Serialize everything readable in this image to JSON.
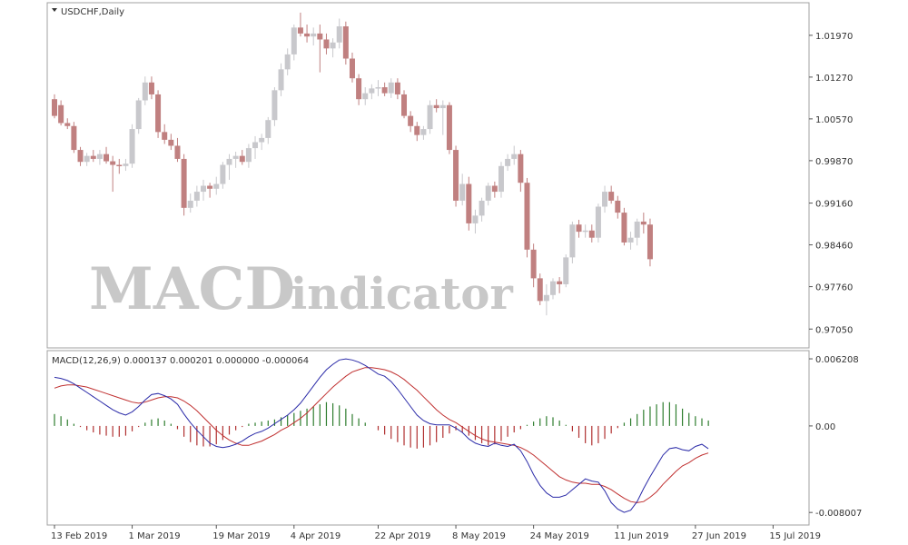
{
  "window": {
    "symbol_label": "USDCHF,Daily"
  },
  "watermark": {
    "word1": "MACD",
    "word2": "indicator"
  },
  "colors": {
    "bull": "#c8c8cc",
    "bear": "#c08080",
    "doji": "#5f5f5f",
    "macd_line": "#2a2aa8",
    "signal_line": "#c03030",
    "hist_pos": "#2e7d2e",
    "hist_neg": "#b03030",
    "grid_border": "#a0a0a0"
  },
  "chart_data": [
    {
      "type": "candlestick",
      "title": "USDCHF,Daily",
      "y_ticks": [
        "1.01970",
        "1.01270",
        "1.00570",
        "0.99870",
        "0.99160",
        "0.98460",
        "0.97760",
        "0.97050"
      ],
      "ylim": [
        0.9678,
        1.0247
      ],
      "x_tick_labels": [
        "13 Feb 2019",
        "1 Mar 2019",
        "19 Mar 2019",
        "4 Apr 2019",
        "22 Apr 2019",
        "8 May 2019",
        "24 May 2019",
        "11 Jun 2019",
        "27 Jun 2019",
        "15 Jul 2019"
      ],
      "x_tick_index": [
        0,
        12,
        25,
        37,
        50,
        62,
        74,
        87,
        99,
        111
      ],
      "ohlc": [
        [
          1.009,
          1.0098,
          1.0058,
          1.0062
        ],
        [
          1.008,
          1.0088,
          1.0046,
          1.005
        ],
        [
          1.005,
          1.0058,
          1.004,
          1.0045
        ],
        [
          1.0045,
          1.0052,
          1.0,
          1.0005
        ],
        [
          1.0005,
          1.001,
          0.9978,
          0.9985
        ],
        [
          0.9985,
          1.0,
          0.9978,
          0.9995
        ],
        [
          0.9995,
          1.0005,
          0.9985,
          0.999
        ],
        [
          0.999,
          1.0005,
          0.998,
          0.9998
        ],
        [
          0.9998,
          1.001,
          0.9982,
          0.9986
        ],
        [
          0.9986,
          0.9995,
          0.9935,
          0.998
        ],
        [
          0.998,
          0.999,
          0.9965,
          0.9978
        ],
        [
          0.9978,
          0.999,
          0.997,
          0.9982
        ],
        [
          0.9982,
          1.0048,
          0.9975,
          1.004
        ],
        [
          1.004,
          1.0092,
          1.0032,
          1.0088
        ],
        [
          1.0088,
          1.0128,
          1.008,
          1.0118
        ],
        [
          1.0118,
          1.0128,
          1.009,
          1.0098
        ],
        [
          1.0098,
          1.0105,
          1.0025,
          1.0035
        ],
        [
          1.0035,
          1.0048,
          1.0015,
          1.0022
        ],
        [
          1.0022,
          1.0032,
          1.0005,
          1.0012
        ],
        [
          1.0012,
          1.0025,
          0.9985,
          0.999
        ],
        [
          0.999,
          0.9998,
          0.9895,
          0.9908
        ],
        [
          0.9908,
          0.9932,
          0.99,
          0.992
        ],
        [
          0.992,
          0.9945,
          0.991,
          0.9935
        ],
        [
          0.9935,
          0.9955,
          0.992,
          0.9945
        ],
        [
          0.9945,
          0.995,
          0.9925,
          0.994
        ],
        [
          0.994,
          0.996,
          0.993,
          0.9948
        ],
        [
          0.9948,
          0.9985,
          0.994,
          0.998
        ],
        [
          0.998,
          0.9998,
          0.9955,
          0.999
        ],
        [
          0.999,
          1.0002,
          0.9975,
          0.9995
        ],
        [
          0.9995,
          1.0005,
          0.998,
          0.9985
        ],
        [
          0.9985,
          1.0015,
          0.9975,
          1.0008
        ],
        [
          1.0008,
          1.0028,
          0.999,
          1.0018
        ],
        [
          1.0018,
          1.0032,
          1.0005,
          1.0025
        ],
        [
          1.0025,
          1.006,
          1.0015,
          1.0055
        ],
        [
          1.0055,
          1.011,
          1.0045,
          1.0105
        ],
        [
          1.0105,
          1.015,
          1.0095,
          1.014
        ],
        [
          1.014,
          1.0175,
          1.013,
          1.0165
        ],
        [
          1.0165,
          1.0215,
          1.0155,
          1.021
        ],
        [
          1.021,
          1.0235,
          1.0195,
          1.02
        ],
        [
          1.02,
          1.0215,
          1.0185,
          1.0195
        ],
        [
          1.0195,
          1.021,
          1.018,
          1.02
        ],
        [
          1.02,
          1.0215,
          1.0135,
          1.019
        ],
        [
          1.019,
          1.02,
          1.0165,
          1.0175
        ],
        [
          1.0175,
          1.0192,
          1.016,
          1.0185
        ],
        [
          1.0185,
          1.0225,
          1.0175,
          1.0212
        ],
        [
          1.0212,
          1.022,
          1.0148,
          1.0158
        ],
        [
          1.0158,
          1.0168,
          1.0118,
          1.0125
        ],
        [
          1.0125,
          1.0132,
          1.008,
          1.009
        ],
        [
          1.009,
          1.011,
          1.008,
          1.01
        ],
        [
          1.01,
          1.0115,
          1.009,
          1.0108
        ],
        [
          1.0108,
          1.0122,
          1.0095,
          1.011
        ],
        [
          1.011,
          1.0118,
          1.0095,
          1.01
        ],
        [
          1.01,
          1.0125,
          1.0092,
          1.0118
        ],
        [
          1.0118,
          1.0125,
          1.009,
          1.0098
        ],
        [
          1.0098,
          1.0105,
          1.0058,
          1.0062
        ],
        [
          1.0062,
          1.007,
          1.0035,
          1.0045
        ],
        [
          1.0045,
          1.0052,
          1.002,
          1.003
        ],
        [
          1.003,
          1.0045,
          1.0022,
          1.004
        ],
        [
          1.004,
          1.0088,
          1.0032,
          1.008
        ],
        [
          1.008,
          1.009,
          1.0068,
          1.0075
        ],
        [
          1.0075,
          1.0088,
          1.003,
          1.008
        ],
        [
          1.008,
          1.0085,
          0.9998,
          1.0005
        ],
        [
          1.0005,
          1.0012,
          0.991,
          0.992
        ],
        [
          0.992,
          0.9965,
          0.9912,
          0.9948
        ],
        [
          0.9948,
          0.996,
          0.987,
          0.9882
        ],
        [
          0.9882,
          0.9905,
          0.9865,
          0.9895
        ],
        [
          0.9895,
          0.9925,
          0.9885,
          0.992
        ],
        [
          0.992,
          0.995,
          0.9912,
          0.9945
        ],
        [
          0.9945,
          0.9952,
          0.9925,
          0.9935
        ],
        [
          0.9935,
          0.9985,
          0.9925,
          0.9978
        ],
        [
          0.9978,
          0.9998,
          0.997,
          0.999
        ],
        [
          0.999,
          1.0012,
          0.998,
          0.9998
        ],
        [
          0.9998,
          1.0005,
          0.9935,
          0.995
        ],
        [
          0.995,
          0.9958,
          0.9825,
          0.9838
        ],
        [
          0.9838,
          0.9848,
          0.9775,
          0.979
        ],
        [
          0.979,
          0.9798,
          0.9745,
          0.9752
        ],
        [
          0.9752,
          0.978,
          0.9728,
          0.9762
        ],
        [
          0.9762,
          0.979,
          0.9755,
          0.9785
        ],
        [
          0.9785,
          0.9792,
          0.9765,
          0.978
        ],
        [
          0.978,
          0.983,
          0.9775,
          0.9825
        ],
        [
          0.9825,
          0.9885,
          0.9815,
          0.988
        ],
        [
          0.988,
          0.9888,
          0.9858,
          0.9868
        ],
        [
          0.9868,
          0.988,
          0.9858,
          0.987
        ],
        [
          0.987,
          0.988,
          0.985,
          0.9858
        ],
        [
          0.9858,
          0.9915,
          0.985,
          0.991
        ],
        [
          0.991,
          0.9945,
          0.99,
          0.9935
        ],
        [
          0.9935,
          0.9945,
          0.9915,
          0.992
        ],
        [
          0.992,
          0.9928,
          0.989,
          0.99
        ],
        [
          0.99,
          0.9908,
          0.9845,
          0.985
        ],
        [
          0.985,
          0.9868,
          0.9838,
          0.9858
        ],
        [
          0.9858,
          0.989,
          0.9845,
          0.9885
        ],
        [
          0.9885,
          0.99,
          0.9865,
          0.988
        ],
        [
          0.988,
          0.989,
          0.981,
          0.9822
        ]
      ]
    },
    {
      "type": "line",
      "title": "MACD(12,26,9) 0.000137 0.000201 0.000000 -0.000064",
      "y_ticks": [
        "0.006208",
        "0.00",
        "-0.008007"
      ],
      "ylim": [
        -0.009,
        0.0068
      ],
      "zero_index_values": {
        "top": 0.006208,
        "zero": 0.0,
        "bottom": -0.008007
      },
      "macd": [
        0.0045,
        0.0044,
        0.0042,
        0.0039,
        0.0035,
        0.0031,
        0.0027,
        0.0023,
        0.0019,
        0.0015,
        0.0012,
        0.001,
        0.0013,
        0.0018,
        0.0024,
        0.0029,
        0.003,
        0.0028,
        0.0025,
        0.002,
        0.0011,
        0.0003,
        -0.0004,
        -0.001,
        -0.0016,
        -0.0019,
        -0.002,
        -0.0019,
        -0.0017,
        -0.0014,
        -0.001,
        -0.0007,
        -0.0005,
        -0.0002,
        0.0002,
        0.0006,
        0.001,
        0.0015,
        0.0021,
        0.0029,
        0.0037,
        0.0045,
        0.0052,
        0.0057,
        0.0061,
        0.0062,
        0.0061,
        0.0059,
        0.0056,
        0.0052,
        0.0048,
        0.0046,
        0.0041,
        0.0034,
        0.0026,
        0.0018,
        0.001,
        0.0005,
        0.0002,
        0.0001,
        0.0001,
        0.0001,
        -0.0002,
        -0.0006,
        -0.0012,
        -0.0016,
        -0.0018,
        -0.0019,
        -0.0016,
        -0.0018,
        -0.0019,
        -0.0017,
        -0.0023,
        -0.0033,
        -0.0045,
        -0.0055,
        -0.0062,
        -0.0066,
        -0.0066,
        -0.0064,
        -0.0059,
        -0.0054,
        -0.0049,
        -0.0051,
        -0.0052,
        -0.006,
        -0.0071,
        -0.0077,
        -0.008,
        -0.0078,
        -0.007,
        -0.0058,
        -0.0047,
        -0.0037,
        -0.0027,
        -0.0021,
        -0.002,
        -0.0022,
        -0.0023,
        -0.0019,
        -0.0017,
        -0.0021
      ],
      "signal": [
        0.0035,
        0.0037,
        0.0038,
        0.0038,
        0.0037,
        0.0036,
        0.0034,
        0.0032,
        0.003,
        0.0028,
        0.0026,
        0.0024,
        0.0022,
        0.0021,
        0.0022,
        0.0024,
        0.0026,
        0.0027,
        0.0027,
        0.0026,
        0.0023,
        0.0019,
        0.0014,
        0.0008,
        0.0002,
        -0.0004,
        -0.0009,
        -0.0013,
        -0.0016,
        -0.0018,
        -0.0018,
        -0.0016,
        -0.0014,
        -0.0011,
        -0.0008,
        -0.0004,
        -0.0001,
        0.0003,
        0.0007,
        0.0012,
        0.0018,
        0.0024,
        0.003,
        0.0036,
        0.0041,
        0.0046,
        0.005,
        0.0052,
        0.0054,
        0.0054,
        0.0053,
        0.0052,
        0.005,
        0.0047,
        0.0043,
        0.0038,
        0.0033,
        0.0027,
        0.0021,
        0.0015,
        0.001,
        0.0006,
        0.0003,
        -0.0001,
        -0.0005,
        -0.0009,
        -0.0012,
        -0.0014,
        -0.0015,
        -0.0016,
        -0.0017,
        -0.0018,
        -0.002,
        -0.0023,
        -0.0027,
        -0.0032,
        -0.0037,
        -0.0042,
        -0.0047,
        -0.005,
        -0.0052,
        -0.0053,
        -0.0053,
        -0.0054,
        -0.0054,
        -0.0056,
        -0.0059,
        -0.0063,
        -0.0067,
        -0.007,
        -0.0071,
        -0.007,
        -0.0066,
        -0.0061,
        -0.0054,
        -0.0048,
        -0.0042,
        -0.0037,
        -0.0034,
        -0.003,
        -0.0027,
        -0.0025
      ],
      "histogram": [
        0.0011,
        0.0009,
        0.0006,
        0.0002,
        -0.0001,
        -0.0004,
        -0.0006,
        -0.0008,
        -0.0009,
        -0.001,
        -0.001,
        -0.0009,
        -0.0005,
        -0.0001,
        0.0003,
        0.0006,
        0.0007,
        0.0005,
        0.0002,
        -0.0003,
        -0.001,
        -0.0015,
        -0.0018,
        -0.0019,
        -0.0019,
        -0.0017,
        -0.0013,
        -0.0008,
        -0.0004,
        -0.0001,
        0.0002,
        0.0003,
        0.0004,
        0.0005,
        0.0006,
        0.0008,
        0.001,
        0.0012,
        0.0014,
        0.0016,
        0.0018,
        0.002,
        0.0022,
        0.0021,
        0.0019,
        0.0016,
        0.0011,
        0.0007,
        0.0003,
        0.0,
        -0.0004,
        -0.0008,
        -0.0012,
        -0.0015,
        -0.0018,
        -0.002,
        -0.0021,
        -0.002,
        -0.0018,
        -0.0015,
        -0.0011,
        -0.0007,
        -0.0004,
        -0.0006,
        -0.0009,
        -0.0013,
        -0.0016,
        -0.0018,
        -0.0017,
        -0.0014,
        -0.001,
        -0.0006,
        -0.0003,
        0.0001,
        0.0004,
        0.0007,
        0.0009,
        0.0008,
        0.0005,
        0.0001,
        -0.0005,
        -0.0011,
        -0.0016,
        -0.0018,
        -0.0016,
        -0.0012,
        -0.0007,
        -0.0002,
        0.0003,
        0.0007,
        0.0011,
        0.0015,
        0.0018,
        0.002,
        0.0022,
        0.0022,
        0.002,
        0.0016,
        0.0012,
        0.0009,
        0.0007,
        0.0005
      ]
    }
  ]
}
